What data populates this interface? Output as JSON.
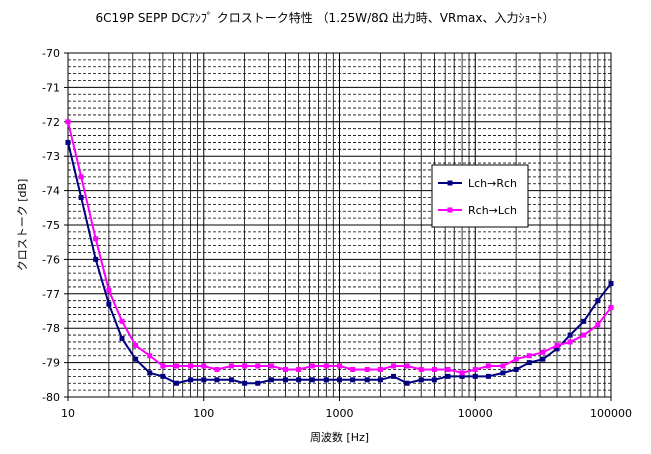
{
  "chart_data": {
    "type": "line",
    "title": "6C19P SEPP DCｱﾝﾌﾟ クロストーク特性 （1.25W/8Ω 出力時、VRmax、入力ｼｮｰﾄ）",
    "xlabel": "周波数 [Hz]",
    "ylabel": "クロストーク [dB]",
    "x_scale": "log",
    "xlim": [
      10,
      100000
    ],
    "ylim": [
      -80,
      -70
    ],
    "x_ticks": [
      10,
      100,
      1000,
      10000,
      100000
    ],
    "x_tick_labels": [
      "10",
      "100",
      "1000",
      "10000",
      "100000"
    ],
    "y_ticks": [
      -70,
      -71,
      -72,
      -73,
      -74,
      -75,
      -76,
      -77,
      -78,
      -79,
      -80
    ],
    "y_tick_labels": [
      "-70",
      "-71",
      "-72",
      "-73",
      "-74",
      "-75",
      "-76",
      "-77",
      "-78",
      "-79",
      "-80"
    ],
    "grid": true,
    "legend_placement": "right-middle",
    "x": [
      10,
      12.5,
      16,
      20,
      25,
      31.5,
      40,
      50,
      63,
      80,
      100,
      125,
      160,
      200,
      250,
      315,
      400,
      500,
      630,
      800,
      1000,
      1250,
      1600,
      2000,
      2500,
      3150,
      4000,
      5000,
      6300,
      8000,
      10000,
      12500,
      16000,
      20000,
      25000,
      31500,
      40000,
      50000,
      63000,
      80000,
      100000
    ],
    "series": [
      {
        "name": "Lch→Rch",
        "color": "#000080",
        "marker": "square",
        "values": [
          -72.6,
          -74.2,
          -76.0,
          -77.3,
          -78.3,
          -78.9,
          -79.3,
          -79.4,
          -79.6,
          -79.5,
          -79.5,
          -79.5,
          -79.5,
          -79.6,
          -79.6,
          -79.5,
          -79.5,
          -79.5,
          -79.5,
          -79.5,
          -79.5,
          -79.5,
          -79.5,
          -79.5,
          -79.4,
          -79.6,
          -79.5,
          -79.5,
          -79.4,
          -79.4,
          -79.4,
          -79.4,
          -79.3,
          -79.2,
          -79.0,
          -78.9,
          -78.6,
          -78.2,
          -77.8,
          -77.2,
          -76.7
        ]
      },
      {
        "name": "Rch→Lch",
        "color": "#ff00ff",
        "marker": "square",
        "values": [
          -72.0,
          -73.6,
          -75.4,
          -76.9,
          -77.8,
          -78.5,
          -78.8,
          -79.1,
          -79.1,
          -79.1,
          -79.1,
          -79.2,
          -79.1,
          -79.1,
          -79.1,
          -79.1,
          -79.2,
          -79.2,
          -79.1,
          -79.1,
          -79.1,
          -79.2,
          -79.2,
          -79.2,
          -79.1,
          -79.1,
          -79.2,
          -79.2,
          -79.2,
          -79.3,
          -79.2,
          -79.1,
          -79.1,
          -78.9,
          -78.8,
          -78.7,
          -78.5,
          -78.4,
          -78.2,
          -77.9,
          -77.4
        ]
      }
    ]
  }
}
